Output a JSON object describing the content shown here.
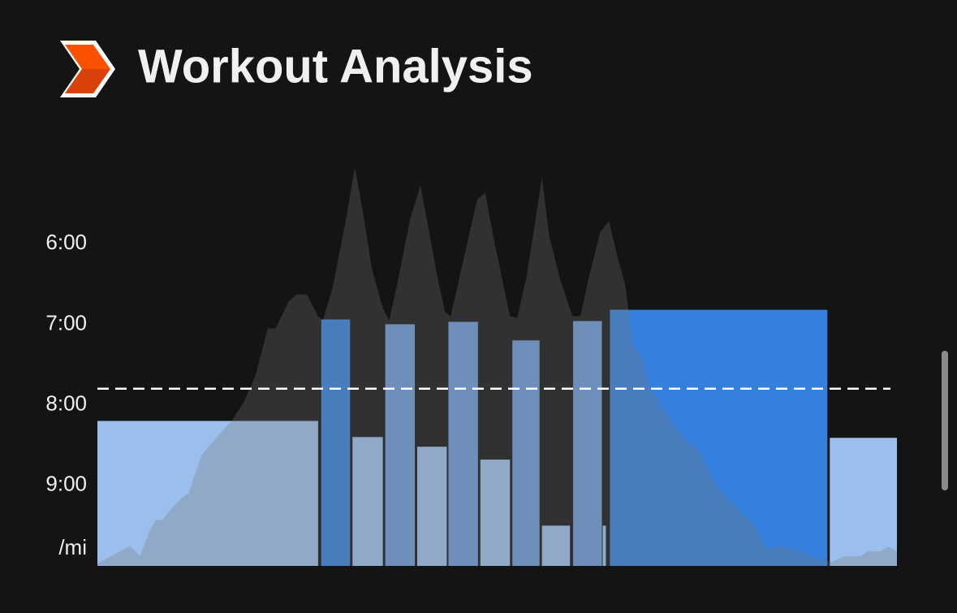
{
  "chart_data": {
    "type": "bar",
    "title": "Workout Analysis",
    "y_unit": "/mi",
    "ylim": [
      10,
      5
    ],
    "yticks": [
      {
        "value": 6,
        "label": "6:00"
      },
      {
        "value": 7,
        "label": "7:00"
      },
      {
        "value": 8,
        "label": "8:00"
      },
      {
        "value": 9,
        "label": "9:00"
      }
    ],
    "xlim": [
      0,
      100
    ],
    "x_ranges": [
      [
        0,
        27.6
      ],
      [
        28.0,
        31.6
      ],
      [
        31.9,
        35.7
      ],
      [
        36.0,
        39.7
      ],
      [
        40.0,
        43.7
      ],
      [
        43.9,
        47.6
      ],
      [
        47.9,
        51.6
      ],
      [
        51.9,
        55.3
      ],
      [
        55.6,
        59.1
      ],
      [
        59.5,
        63.1
      ],
      [
        63.2,
        63.6
      ],
      [
        64.1,
        91.3
      ],
      [
        91.6,
        100
      ]
    ],
    "values": [
      8.2,
      6.94,
      8.4,
      7.0,
      8.52,
      6.97,
      8.68,
      7.2,
      9.5,
      6.96,
      9.5,
      6.82,
      8.41
    ],
    "colors": [
      "#9bbfec",
      "#3580dc",
      "#9bbfec",
      "#6a9ad6",
      "#9bbfec",
      "#6a9ad6",
      "#9bbfec",
      "#6a9ad6",
      "#9bbfec",
      "#6a9ad6",
      "#9bbfec",
      "#3580dc",
      "#9bbfec"
    ],
    "average": 7.8,
    "area": {
      "color": "#777777",
      "x": [
        0,
        4.1,
        5.3,
        6.6,
        7.3,
        8.1,
        9.6,
        10.7,
        11.4,
        13.0,
        15.2,
        16.8,
        18.3,
        19.8,
        21.3,
        22.3,
        23.9,
        24.9,
        26.2,
        27.6,
        28.2,
        29.4,
        31.0,
        32.2,
        33.2,
        34.3,
        35.7,
        36.5,
        37.6,
        39.1,
        40.4,
        41.4,
        42.6,
        43.5,
        44.2,
        45.2,
        46.7,
        47.5,
        48.5,
        49.7,
        51.6,
        52.5,
        53.6,
        54.8,
        55.6,
        56.5,
        57.9,
        59.4,
        60.4,
        61.4,
        62.9,
        64.0,
        65.0,
        66.0,
        67.0,
        68.0,
        69.0,
        71.1,
        73.6,
        75.1,
        76.1,
        77.7,
        79.7,
        82.2,
        83.8,
        85.3,
        87.3,
        89.3,
        91.9,
        93.4,
        95.4,
        96.4,
        98.0,
        99.0,
        100
      ],
      "values": [
        9.97,
        9.75,
        9.88,
        9.55,
        9.43,
        9.43,
        9.25,
        9.14,
        9.1,
        8.63,
        8.37,
        8.2,
        7.97,
        7.63,
        7.05,
        7.05,
        6.72,
        6.63,
        6.63,
        6.9,
        6.95,
        6.55,
        5.75,
        5.05,
        5.6,
        6.3,
        6.8,
        6.95,
        6.45,
        5.7,
        5.28,
        5.8,
        6.45,
        6.85,
        6.9,
        6.45,
        5.8,
        5.45,
        5.37,
        6.0,
        6.9,
        6.92,
        6.45,
        5.7,
        5.18,
        5.9,
        6.45,
        6.9,
        6.9,
        6.45,
        5.85,
        5.72,
        6.15,
        6.5,
        7.25,
        7.4,
        7.75,
        8.1,
        8.45,
        8.55,
        8.75,
        9.05,
        9.25,
        9.5,
        9.8,
        9.75,
        9.8,
        9.88,
        9.95,
        9.88,
        9.88,
        9.82,
        9.82,
        9.76,
        9.82
      ]
    }
  }
}
